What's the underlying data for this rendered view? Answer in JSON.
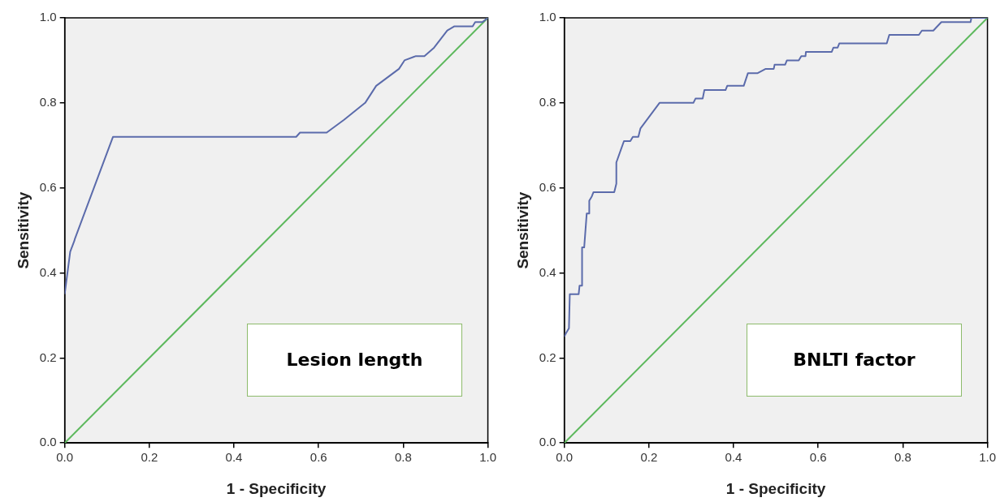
{
  "chart_data": [
    {
      "type": "line",
      "xlabel": "1 - Specificity",
      "ylabel": "Sensitivity",
      "annotations": [
        "Lesion length"
      ],
      "xlim": [
        0,
        1
      ],
      "ylim": [
        0,
        1
      ],
      "xticks": [
        {
          "value": 0,
          "label": "0.0"
        },
        {
          "value": 0.2,
          "label": "0.2"
        },
        {
          "value": 0.4,
          "label": "0.4"
        },
        {
          "value": 0.6,
          "label": "0.6"
        },
        {
          "value": 0.8,
          "label": "0.8"
        },
        {
          "value": 1,
          "label": "1.0"
        }
      ],
      "yticks": [
        {
          "value": 0,
          "label": "0.0"
        },
        {
          "value": 0.2,
          "label": "0.2"
        },
        {
          "value": 0.4,
          "label": "0.4"
        },
        {
          "value": 0.6,
          "label": "0.6"
        },
        {
          "value": 0.8,
          "label": "0.8"
        },
        {
          "value": 1,
          "label": "1.0"
        }
      ],
      "grid": false,
      "legend": false,
      "marker": "none",
      "line_style": "solid",
      "series": [
        {
          "color": "#5b6bab",
          "x": [
            0,
            0.013,
            0.023,
            0.024,
            0.114,
            0.547,
            0.556,
            0.619,
            0.66,
            0.71,
            0.736,
            0.79,
            0.803,
            0.83,
            0.85,
            0.873,
            0.904,
            0.921,
            0.964,
            0.97,
            0.987,
            1
          ],
          "values": [
            0.35,
            0.45,
            0.476,
            0.48,
            0.72,
            0.72,
            0.73,
            0.73,
            0.76,
            0.8,
            0.84,
            0.88,
            0.9,
            0.91,
            0.91,
            0.93,
            0.97,
            0.98,
            0.98,
            0.99,
            0.99,
            1
          ]
        },
        {
          "color": "#5cb85c",
          "x": [
            0,
            1
          ],
          "values": [
            0,
            1
          ]
        }
      ]
    },
    {
      "type": "line",
      "xlabel": "1 - Specificity",
      "ylabel": "Sensitivity",
      "annotations": [
        "BNLTI factor"
      ],
      "xlim": [
        0,
        1
      ],
      "ylim": [
        0,
        1
      ],
      "xticks": [
        {
          "value": 0,
          "label": "0.0"
        },
        {
          "value": 0.2,
          "label": "0.2"
        },
        {
          "value": 0.4,
          "label": "0.4"
        },
        {
          "value": 0.6,
          "label": "0.6"
        },
        {
          "value": 0.8,
          "label": "0.8"
        },
        {
          "value": 1,
          "label": "1.0"
        }
      ],
      "yticks": [
        {
          "value": 0,
          "label": "0.0"
        },
        {
          "value": 0.2,
          "label": "0.2"
        },
        {
          "value": 0.4,
          "label": "0.4"
        },
        {
          "value": 0.6,
          "label": "0.6"
        },
        {
          "value": 0.8,
          "label": "0.8"
        },
        {
          "value": 1,
          "label": "1.0"
        }
      ],
      "grid": false,
      "legend": false,
      "marker": "none",
      "line_style": "solid",
      "series": [
        {
          "color": "#5b6bab",
          "x": [
            0,
            0.005,
            0.011,
            0.013,
            0.034,
            0.036,
            0.042,
            0.042,
            0.047,
            0.053,
            0.059,
            0.059,
            0.065,
            0.069,
            0.118,
            0.123,
            0.123,
            0.141,
            0.156,
            0.162,
            0.175,
            0.18,
            0.225,
            0.305,
            0.31,
            0.327,
            0.331,
            0.381,
            0.385,
            0.424,
            0.434,
            0.457,
            0.476,
            0.495,
            0.497,
            0.522,
            0.526,
            0.554,
            0.56,
            0.57,
            0.571,
            0.632,
            0.636,
            0.646,
            0.65,
            0.762,
            0.768,
            0.838,
            0.845,
            0.872,
            0.891,
            0.96,
            0.962,
            1
          ],
          "values": [
            0.25,
            0.26,
            0.27,
            0.35,
            0.35,
            0.37,
            0.37,
            0.46,
            0.46,
            0.54,
            0.54,
            0.57,
            0.58,
            0.59,
            0.59,
            0.61,
            0.66,
            0.71,
            0.71,
            0.72,
            0.72,
            0.74,
            0.8,
            0.8,
            0.81,
            0.81,
            0.83,
            0.83,
            0.84,
            0.84,
            0.87,
            0.87,
            0.88,
            0.88,
            0.89,
            0.89,
            0.9,
            0.9,
            0.91,
            0.91,
            0.92,
            0.92,
            0.93,
            0.93,
            0.94,
            0.94,
            0.96,
            0.96,
            0.97,
            0.97,
            0.99,
            0.99,
            1,
            1
          ]
        },
        {
          "color": "#5cb85c",
          "x": [
            0,
            1
          ],
          "values": [
            0,
            1
          ]
        }
      ]
    }
  ]
}
